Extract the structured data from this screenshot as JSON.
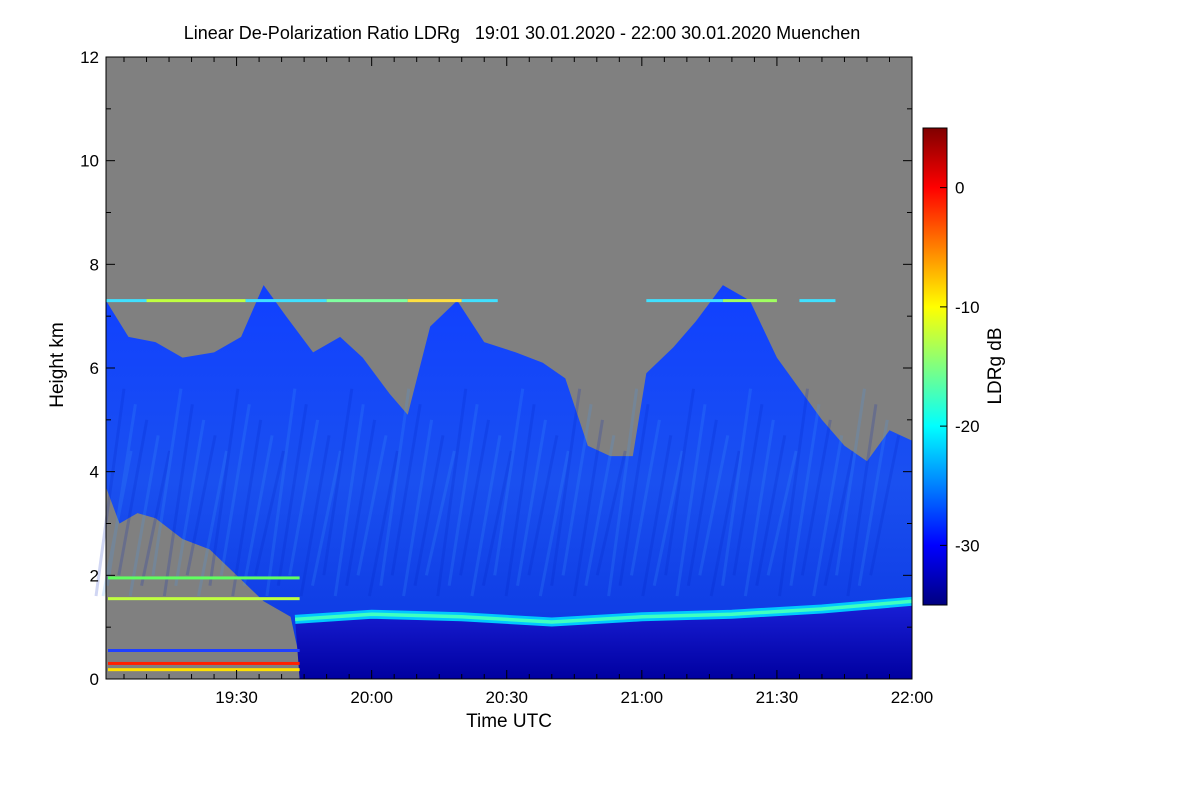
{
  "chart_data": {
    "type": "heatmap",
    "title": "Linear De-Polarization Ratio LDRg   19:01 30.01.2020 - 22:00 30.01.2020 Muenchen",
    "xlabel": "Time UTC",
    "ylabel": "Height km",
    "x_range_minutes_utc": [
      1141,
      1320
    ],
    "x_ticks": [
      {
        "label": "19:30",
        "minutes": 1170
      },
      {
        "label": "20:00",
        "minutes": 1200
      },
      {
        "label": "20:30",
        "minutes": 1230
      },
      {
        "label": "21:00",
        "minutes": 1260
      },
      {
        "label": "21:30",
        "minutes": 1290
      },
      {
        "label": "22:00",
        "minutes": 1320
      }
    ],
    "y_range_km": [
      0,
      12
    ],
    "y_ticks": [
      0,
      2,
      4,
      6,
      8,
      10,
      12
    ],
    "colorbar": {
      "label": "LDRg dB",
      "range_db": [
        -35,
        5
      ],
      "ticks": [
        0,
        -10,
        -20,
        -30
      ],
      "colors": [
        "#000080",
        "#0000ff",
        "#0080ff",
        "#00ffff",
        "#80ff80",
        "#ffff00",
        "#ff8000",
        "#ff0000",
        "#800000"
      ]
    },
    "no_signal_color": "#808080",
    "cloud_top_km": [
      {
        "minutes": 1141,
        "km": 7.3
      },
      {
        "minutes": 1146,
        "km": 6.6
      },
      {
        "minutes": 1152,
        "km": 6.5
      },
      {
        "minutes": 1158,
        "km": 6.2
      },
      {
        "minutes": 1165,
        "km": 6.3
      },
      {
        "minutes": 1171,
        "km": 6.6
      },
      {
        "minutes": 1176,
        "km": 7.6
      },
      {
        "minutes": 1181,
        "km": 7.0
      },
      {
        "minutes": 1187,
        "km": 6.3
      },
      {
        "minutes": 1193,
        "km": 6.6
      },
      {
        "minutes": 1198,
        "km": 6.2
      },
      {
        "minutes": 1204,
        "km": 5.5
      },
      {
        "minutes": 1208,
        "km": 5.1
      },
      {
        "minutes": 1213,
        "km": 6.8
      },
      {
        "minutes": 1219,
        "km": 7.3
      },
      {
        "minutes": 1225,
        "km": 6.5
      },
      {
        "minutes": 1232,
        "km": 6.3
      },
      {
        "minutes": 1238,
        "km": 6.1
      },
      {
        "minutes": 1243,
        "km": 5.8
      },
      {
        "minutes": 1248,
        "km": 4.5
      },
      {
        "minutes": 1253,
        "km": 4.3
      },
      {
        "minutes": 1258,
        "km": 4.3
      },
      {
        "minutes": 1261,
        "km": 5.9
      },
      {
        "minutes": 1267,
        "km": 6.4
      },
      {
        "minutes": 1272,
        "km": 6.9
      },
      {
        "minutes": 1278,
        "km": 7.6
      },
      {
        "minutes": 1284,
        "km": 7.3
      },
      {
        "minutes": 1290,
        "km": 6.2
      },
      {
        "minutes": 1295,
        "km": 5.6
      },
      {
        "minutes": 1300,
        "km": 5.0
      },
      {
        "minutes": 1305,
        "km": 4.5
      },
      {
        "minutes": 1310,
        "km": 4.2
      },
      {
        "minutes": 1315,
        "km": 4.8
      },
      {
        "minutes": 1320,
        "km": 4.6
      }
    ],
    "cloud_base_km": [
      {
        "minutes": 1141,
        "km": 3.7
      },
      {
        "minutes": 1144,
        "km": 3.0
      },
      {
        "minutes": 1148,
        "km": 3.2
      },
      {
        "minutes": 1152,
        "km": 3.1
      },
      {
        "minutes": 1158,
        "km": 2.7
      },
      {
        "minutes": 1164,
        "km": 2.5
      },
      {
        "minutes": 1170,
        "km": 2.0
      },
      {
        "minutes": 1176,
        "km": 1.5
      },
      {
        "minutes": 1182,
        "km": 1.2
      }
    ],
    "melting_layer_km": [
      {
        "minutes": 1183,
        "km": 1.15
      },
      {
        "minutes": 1200,
        "km": 1.25
      },
      {
        "minutes": 1220,
        "km": 1.2
      },
      {
        "minutes": 1240,
        "km": 1.1
      },
      {
        "minutes": 1260,
        "km": 1.2
      },
      {
        "minutes": 1280,
        "km": 1.25
      },
      {
        "minutes": 1300,
        "km": 1.35
      },
      {
        "minutes": 1320,
        "km": 1.5
      }
    ],
    "depolarizing_layer_km": {
      "km": 7.3,
      "ldr_db": -15
    }
  }
}
